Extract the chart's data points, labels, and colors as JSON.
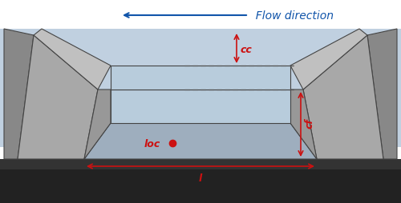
{
  "bg_sky_color": "#c0d0e0",
  "bg_white_color": "#f0f0f0",
  "bg_ground_dark": "#222222",
  "dike_color": "#a8a8a8",
  "dike_top_color": "#c0c0c0",
  "dike_edge_color": "#444444",
  "dike_side_color": "#888888",
  "breach_back_color": "#b8ccdc",
  "breach_floor_color": "#9eaebe",
  "breach_side_color": "#989898",
  "water_top_color": "#b8ccdc",
  "arrow_color": "#cc1111",
  "flow_arrow_color": "#1155aa",
  "flow_text": "Flow direction",
  "flow_text_color": "#1155aa",
  "label_cc": "cc",
  "label_cf": "cf",
  "label_l": "l",
  "label_loc": "loc",
  "font_size_labels": 9,
  "font_size_flow": 10
}
